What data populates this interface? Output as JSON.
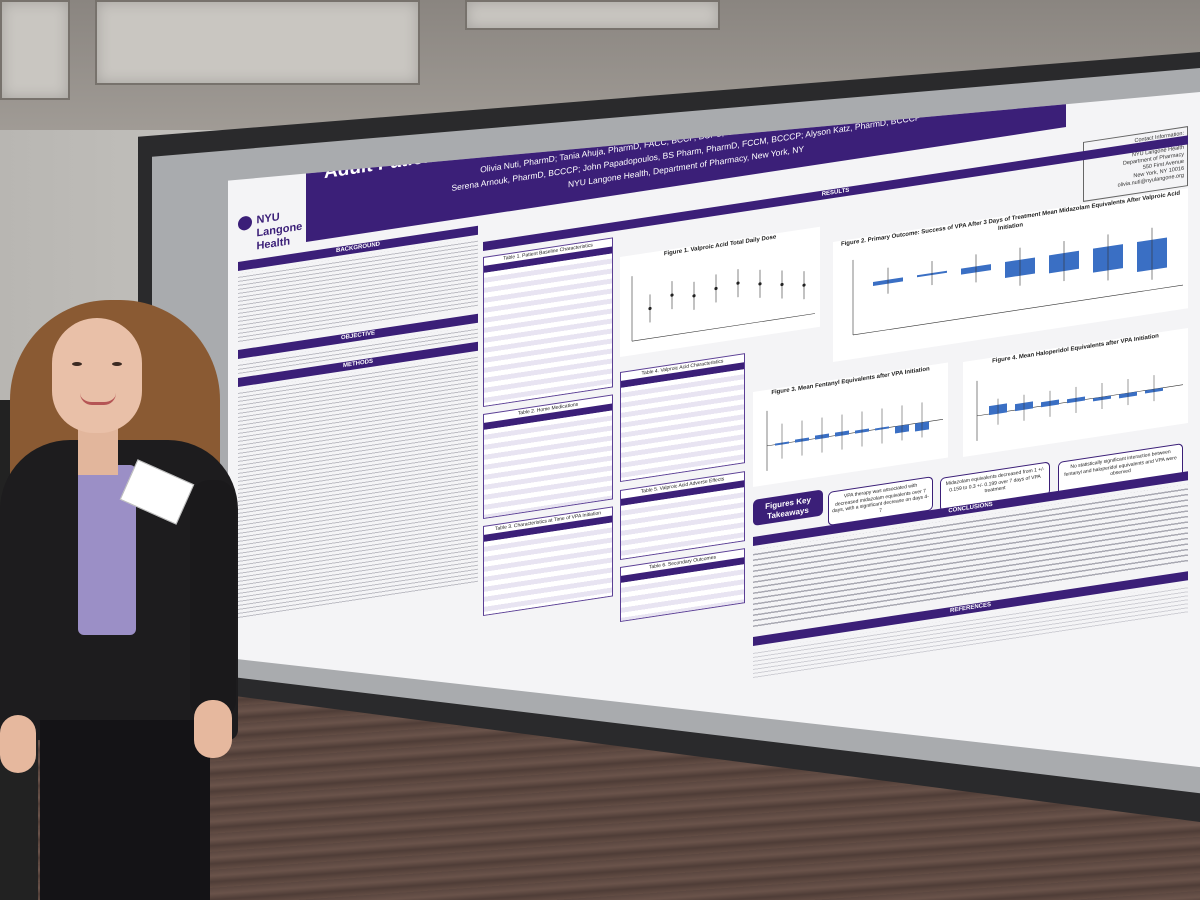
{
  "poster": {
    "title": "Evaluation of Valproic Acid for Hyperactive Delirium and Agitation in Critically Ill Adult Patients at a Large Academic Medical Center",
    "authors_line1": "Olivia Nuti, PharmD; Tania Ahuja, PharmD, FACC, BCCP, BCPS, CACP; Cristian Merchan, PharmD, BCCCP;",
    "authors_line2": "Serena Arnouk, PharmD, BCCCP; John Papadopoulos, BS Pharm, PharmD, FCCM, BCCCP; Alyson Katz, PharmD, BCCCP",
    "affiliation": "NYU Langone Health, Department of Pharmacy, New York, NY",
    "logo_text": "NYU Langone Health",
    "contact": [
      "Contact Information:",
      "Olivia Nuti, PharmD",
      "NYU Langone Health",
      "Department of Pharmacy",
      "550 First Avenue",
      "New York, NY 10016",
      "olivia.nuti@nyulangone.org"
    ],
    "sections": {
      "background": "BACKGROUND",
      "objective": "OBJECTIVE",
      "methods": "METHODS",
      "results": "RESULTS",
      "conclusions": "CONCLUSIONS",
      "references": "REFERENCES"
    },
    "tables": [
      "Table 1. Patient Baseline Characteristics",
      "Table 2. Home Medications",
      "Table 3. Characteristics at Time of VPA Initiation",
      "Table 4. Valproic Acid Characteristics",
      "Table 5. Valproic Acid Adverse Effects",
      "Table 6. Secondary Outcomes"
    ],
    "figures": {
      "fig1": "Figure 1. Valproic Acid Total Daily Dose",
      "fig2": "Figure 2. Primary Outcome: Success of VPA After 3 Days of Treatment Mean Midazolam Equivalents After Valproic Acid Initiation",
      "fig3": "Figure 3. Mean Fentanyl Equivalents after VPA Initiation",
      "fig4": "Figure 4. Mean Haloperidol Equivalents after VPA Initiation"
    },
    "key_takeaways": {
      "title": "Figures Key Takeaways",
      "box1": "VPA therapy was associated with decreased midazolam equivalents over 7 days, with a significant decrease on days 4-7",
      "box2": "Midazolam equivalents decreased from 1 +/- 0.159 to 0.3 +/- 0.199 over 7 days of VPA treatment",
      "box3": "No statistically significant interaction between fentanyl and haloperidol equivalents and VPA were observed"
    }
  },
  "colors": {
    "accent": "#3b1f78",
    "bar": "#3a6fc4"
  }
}
